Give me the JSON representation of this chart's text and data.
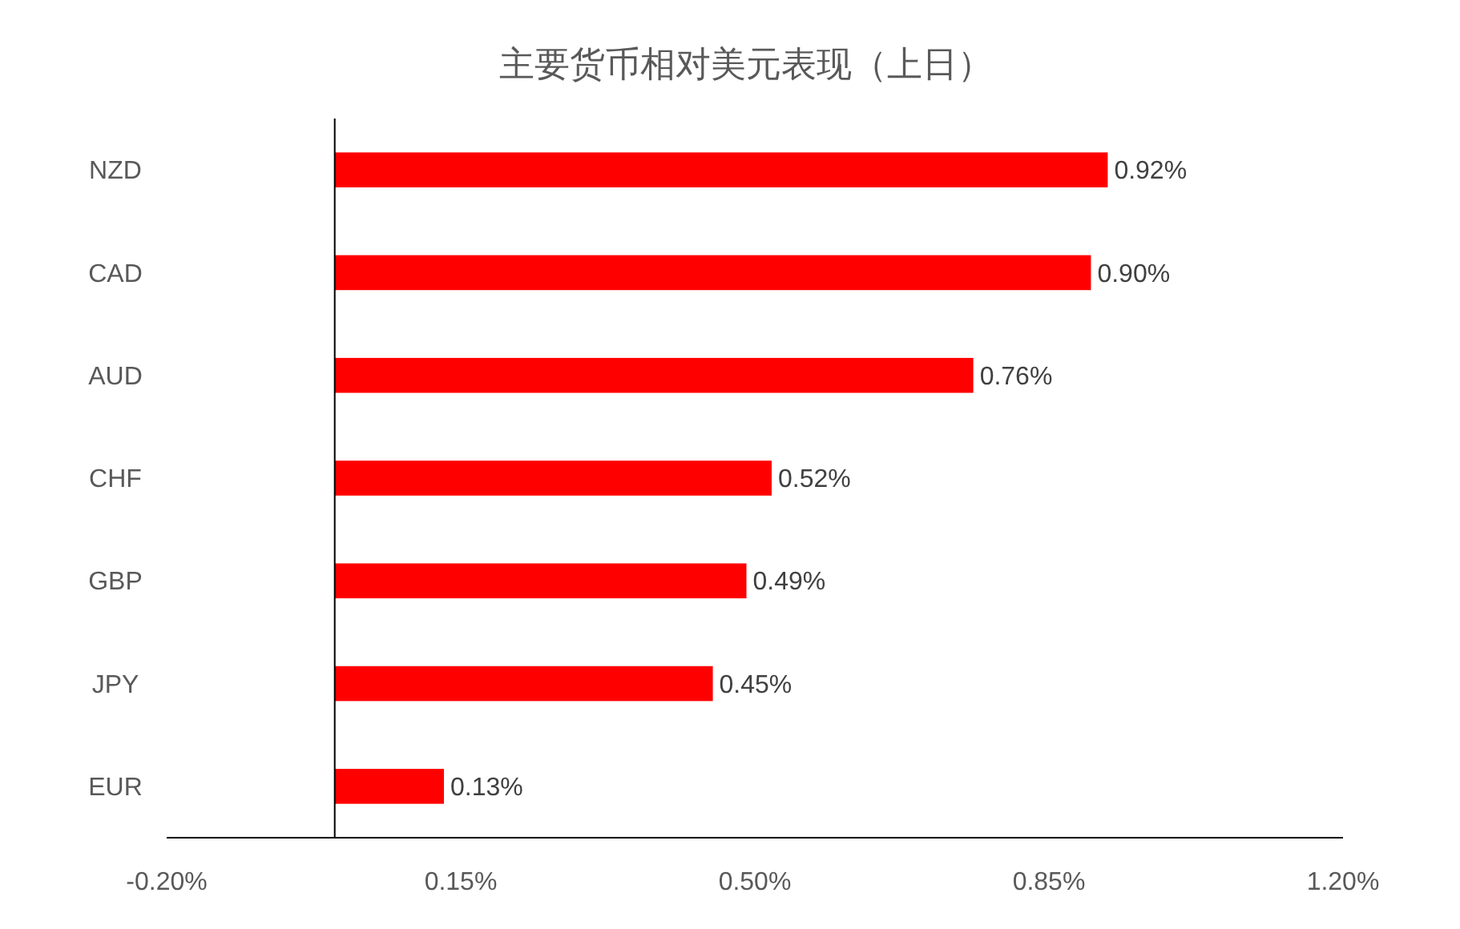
{
  "chart_data": {
    "type": "bar",
    "orientation": "horizontal",
    "title": "主要货币相对美元表现（上日）",
    "categories": [
      "NZD",
      "CAD",
      "AUD",
      "CHF",
      "GBP",
      "JPY",
      "EUR"
    ],
    "values": [
      0.92,
      0.9,
      0.76,
      0.52,
      0.49,
      0.45,
      0.13
    ],
    "value_labels": [
      "0.92%",
      "0.90%",
      "0.76%",
      "0.52%",
      "0.49%",
      "0.45%",
      "0.13%"
    ],
    "color": "#ff0000",
    "xlim": [
      -0.2,
      1.2
    ],
    "xticks": [
      {
        "value": -0.2,
        "label": "-0.20%"
      },
      {
        "value": 0.15,
        "label": "0.15%"
      },
      {
        "value": 0.5,
        "label": "0.50%"
      },
      {
        "value": 0.85,
        "label": "0.85%"
      },
      {
        "value": 1.2,
        "label": "1.20%"
      }
    ],
    "grid": false
  }
}
